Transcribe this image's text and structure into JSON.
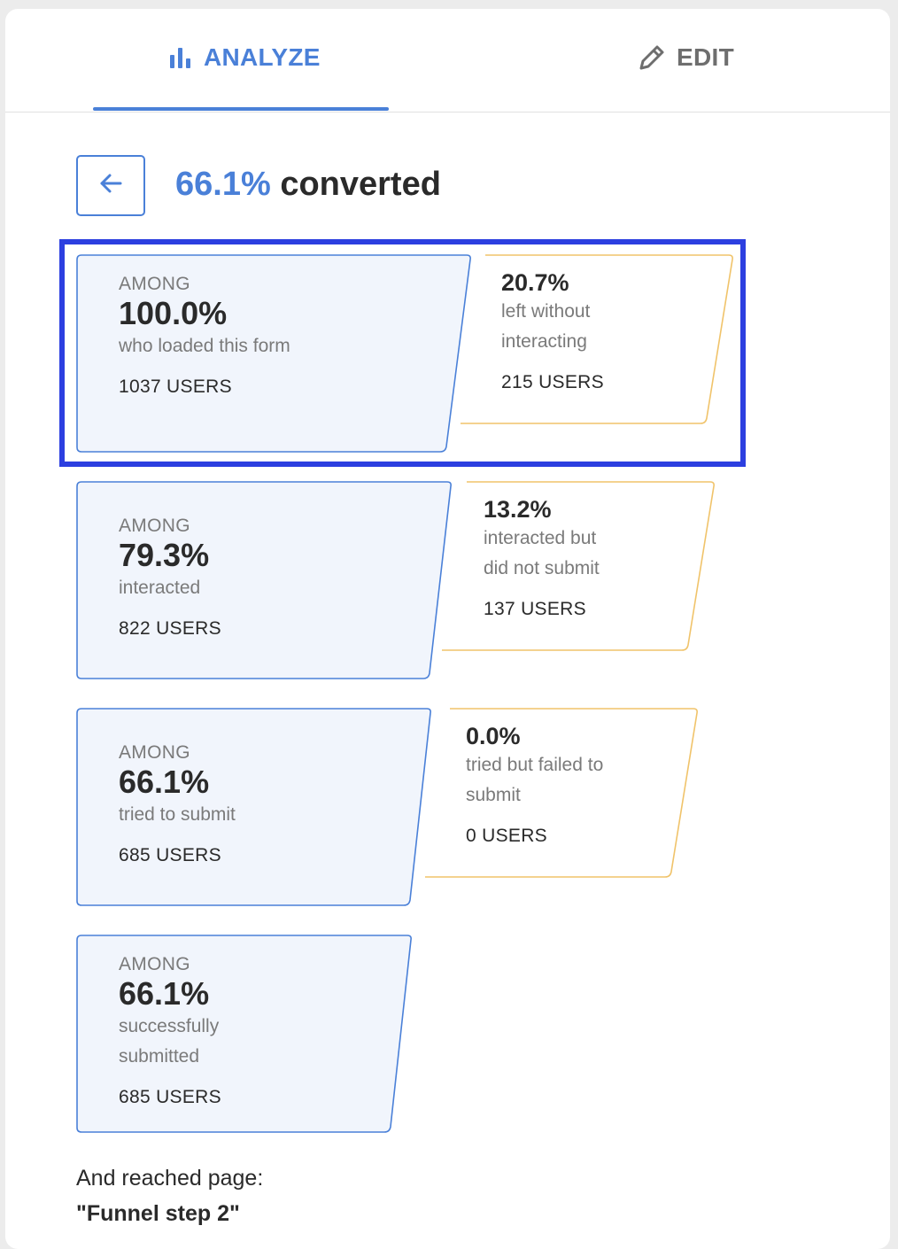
{
  "tabs": {
    "analyze": "ANALYZE",
    "edit": "EDIT"
  },
  "header": {
    "conversion_pct": "66.1%",
    "conversion_label": "converted"
  },
  "funnel": [
    {
      "among_label": "AMONG",
      "pct": "100.0%",
      "desc": "who loaded this form",
      "users": "1037 USERS"
    },
    {
      "among_label": "AMONG",
      "pct": "79.3%",
      "desc": "interacted",
      "users": "822 USERS"
    },
    {
      "among_label": "AMONG",
      "pct": "66.1%",
      "desc": "tried to submit",
      "users": "685 USERS"
    },
    {
      "among_label": "AMONG",
      "pct": "66.1%",
      "desc": "successfully submitted",
      "users": "685 USERS"
    }
  ],
  "dropoffs": [
    {
      "pct": "20.7%",
      "desc": "left without interacting",
      "users": "215 USERS"
    },
    {
      "pct": "13.2%",
      "desc": "interacted but did not submit",
      "users": "137 USERS"
    },
    {
      "pct": "0.0%",
      "desc": "tried but failed to submit",
      "users": "0 USERS"
    }
  ],
  "footer": {
    "reached_label": "And reached page:",
    "page_name": "\"Funnel step 2\""
  },
  "colors": {
    "accent": "#4a80d8",
    "stage_fill": "#f1f5fc",
    "dropoff_border": "#f0c36a",
    "highlight": "#2c3fe0"
  },
  "icons": {
    "analyze": "bar-chart-icon",
    "edit": "pencil-icon",
    "back": "arrow-left-icon"
  }
}
